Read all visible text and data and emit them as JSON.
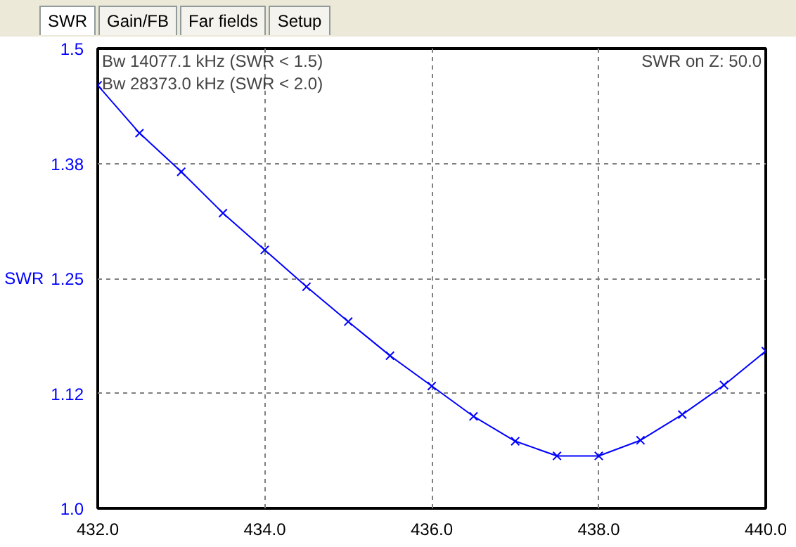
{
  "chart_data": {
    "type": "line",
    "ylabel": "SWR",
    "annotations": [
      "SWR",
      "Gain/FB",
      "Far fields",
      "Setup",
      "Bw 14077.1 kHz (SWR < 1.5)",
      "Bw 28373.0 kHz (SWR < 2.0)",
      "SWR on Z: 50.0"
    ],
    "x": [
      432.0,
      432.5,
      433.0,
      433.5,
      434.0,
      434.5,
      435.0,
      435.5,
      436.0,
      436.5,
      437.0,
      437.5,
      438.0,
      438.5,
      439.0,
      439.5,
      440.0
    ],
    "series": [
      {
        "color": "#0000ff",
        "values": [
          1.46,
          1.408,
          1.366,
          1.321,
          1.281,
          1.241,
          1.203,
          1.166,
          1.133,
          1.1,
          1.073,
          1.057,
          1.057,
          1.074,
          1.102,
          1.134,
          1.171
        ]
      }
    ],
    "xlim": [
      432.0,
      440.0
    ],
    "ylim": [
      1.0,
      1.5
    ],
    "xticks": [
      {
        "value": 432,
        "label": "432.0"
      },
      {
        "value": 434,
        "label": "434.0"
      },
      {
        "value": 436,
        "label": "436.0"
      },
      {
        "value": 438,
        "label": "438.0"
      },
      {
        "value": 440,
        "label": "440.0"
      }
    ],
    "yticks": [
      {
        "value": 1.0,
        "label": "1.0"
      },
      {
        "value": 1.125,
        "label": "1.12"
      },
      {
        "value": 1.25,
        "label": "1.25"
      },
      {
        "value": 1.375,
        "label": "1.38"
      },
      {
        "value": 1.5,
        "label": "1.5"
      }
    ],
    "grid": true,
    "marker": "cross",
    "line_style": "solid",
    "legend": false
  }
}
